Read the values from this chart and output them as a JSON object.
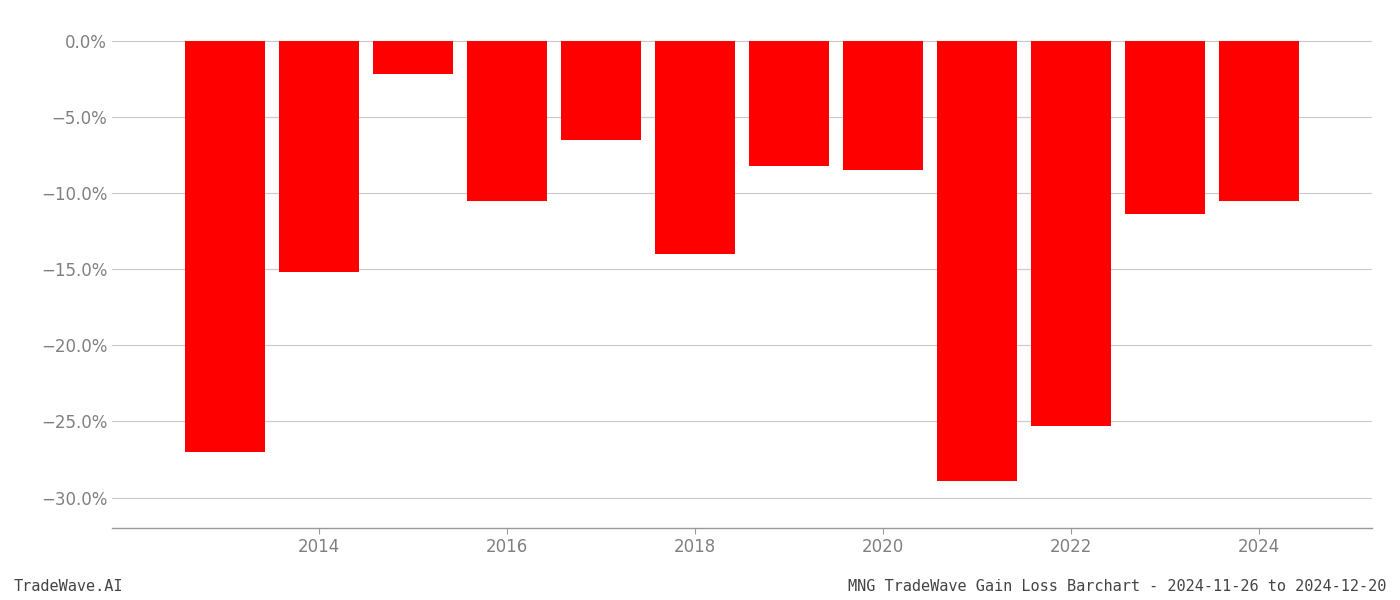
{
  "years": [
    2013,
    2014,
    2015,
    2016,
    2017,
    2018,
    2019,
    2020,
    2021,
    2022,
    2023,
    2024
  ],
  "values": [
    -0.27,
    -0.152,
    -0.022,
    -0.105,
    -0.065,
    -0.14,
    -0.082,
    -0.085,
    -0.289,
    -0.253,
    -0.114,
    -0.105
  ],
  "bar_color": "#ff0000",
  "background_color": "#ffffff",
  "ylim": [
    -0.32,
    0.015
  ],
  "yticks": [
    0.0,
    -0.05,
    -0.1,
    -0.15,
    -0.2,
    -0.25,
    -0.3
  ],
  "xticks": [
    2014,
    2016,
    2018,
    2020,
    2022,
    2024
  ],
  "grid_color": "#c8c8c8",
  "axis_label_color": "#808080",
  "bottom_left_text": "TradeWave.AI",
  "bottom_right_text": "MNG TradeWave Gain Loss Barchart - 2024-11-26 to 2024-12-20",
  "bar_width": 0.85,
  "figsize": [
    14.0,
    6.0
  ],
  "dpi": 100
}
